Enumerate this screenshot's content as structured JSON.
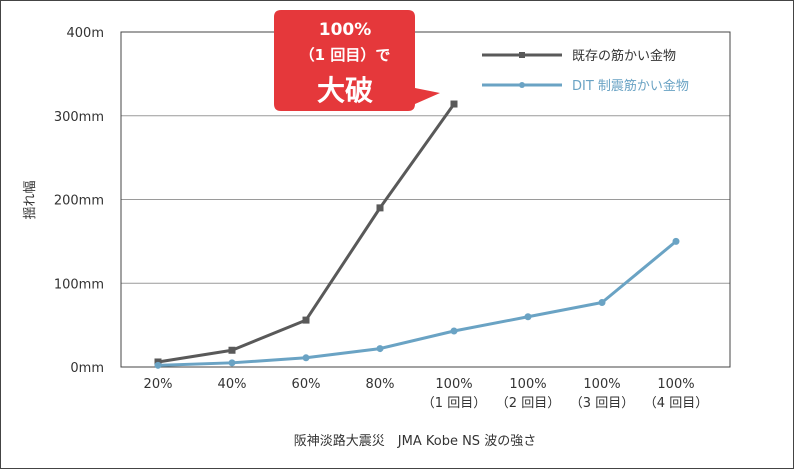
{
  "chart_data": {
    "type": "line",
    "categories": [
      [
        "20%"
      ],
      [
        "40%"
      ],
      [
        "60%"
      ],
      [
        "80%"
      ],
      [
        "100%",
        "（1 回目）"
      ],
      [
        "100%",
        "（2 回目）"
      ],
      [
        "100%",
        "（3 回目）"
      ],
      [
        "100%",
        "（4 回目）"
      ]
    ],
    "y_ticks": [
      {
        "value": 0,
        "label": "0mm"
      },
      {
        "value": 100,
        "label": "100mm"
      },
      {
        "value": 200,
        "label": "200mm"
      },
      {
        "value": 300,
        "label": "300mm"
      },
      {
        "value": 400,
        "label": "400m"
      }
    ],
    "ylim": [
      0,
      400
    ],
    "ylabel": "揺れ幅",
    "xlabel": "阪神淡路大震災　JMA Kobe NS 波の強さ",
    "grid": "horizontal",
    "legend_position": "top-right",
    "series": [
      {
        "name": "既存の筋かい金物",
        "color": "#595959",
        "marker": "square",
        "values": [
          6,
          20,
          56,
          190,
          314,
          null,
          null,
          null
        ]
      },
      {
        "name": "DIT 制震筋かい金物",
        "color": "#6aa3c4",
        "marker": "circle",
        "values": [
          2,
          5,
          11,
          22,
          43,
          60,
          77,
          150
        ]
      }
    ],
    "annotation": {
      "lines": [
        "100%",
        "（1 回目）で",
        "大破"
      ],
      "color": "#e5383b"
    }
  }
}
